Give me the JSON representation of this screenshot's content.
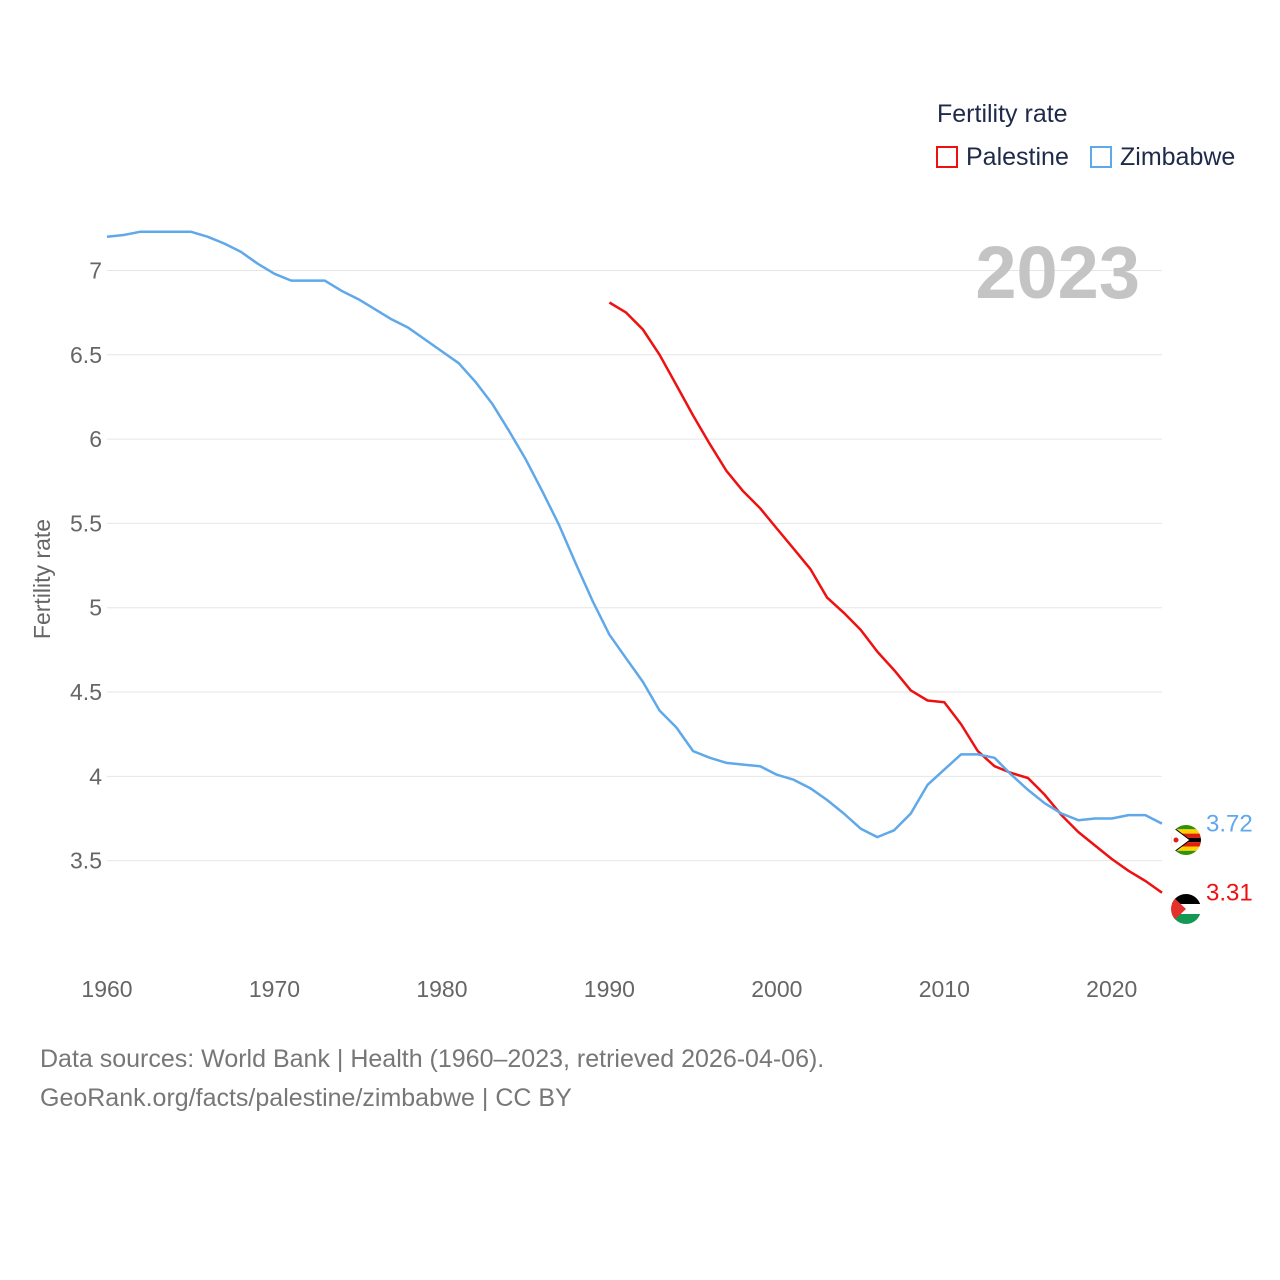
{
  "legend": {
    "title": "Fertility rate",
    "items": [
      {
        "label": "Palestine",
        "color": "#ee1111"
      },
      {
        "label": "Zimbabwe",
        "color": "#5fa8ea"
      }
    ]
  },
  "chart_data": {
    "type": "line",
    "year_label": "2023",
    "ylabel": "Fertility rate",
    "xlabel": "",
    "xlim": [
      1960,
      2023
    ],
    "ylim": [
      3,
      7.4
    ],
    "xticks": [
      1960,
      1970,
      1980,
      1990,
      2000,
      2010,
      2020
    ],
    "yticks": [
      3.5,
      4,
      4.5,
      5,
      5.5,
      6,
      6.5,
      7
    ],
    "series": [
      {
        "name": "Palestine",
        "color": "#ee1111",
        "end_label": "3.31",
        "x": [
          1990,
          1991,
          1992,
          1993,
          1994,
          1995,
          1996,
          1997,
          1998,
          1999,
          2000,
          2001,
          2002,
          2003,
          2004,
          2005,
          2006,
          2007,
          2008,
          2009,
          2010,
          2011,
          2012,
          2013,
          2014,
          2015,
          2016,
          2017,
          2018,
          2019,
          2020,
          2021,
          2022,
          2023
        ],
        "y": [
          6.81,
          6.75,
          6.65,
          6.5,
          6.32,
          6.14,
          5.97,
          5.81,
          5.69,
          5.59,
          5.47,
          5.35,
          5.23,
          5.06,
          4.97,
          4.87,
          4.74,
          4.63,
          4.51,
          4.45,
          4.44,
          4.31,
          4.15,
          4.06,
          4.02,
          3.99,
          3.89,
          3.77,
          3.67,
          3.59,
          3.51,
          3.44,
          3.38,
          3.31
        ]
      },
      {
        "name": "Zimbabwe",
        "color": "#5fa8ea",
        "end_label": "3.72",
        "x": [
          1960,
          1961,
          1962,
          1963,
          1964,
          1965,
          1966,
          1967,
          1968,
          1969,
          1970,
          1971,
          1972,
          1973,
          1974,
          1975,
          1976,
          1977,
          1978,
          1979,
          1980,
          1981,
          1982,
          1983,
          1984,
          1985,
          1986,
          1987,
          1988,
          1989,
          1990,
          1991,
          1992,
          1993,
          1994,
          1995,
          1996,
          1997,
          1998,
          1999,
          2000,
          2001,
          2002,
          2003,
          2004,
          2005,
          2006,
          2007,
          2008,
          2009,
          2010,
          2011,
          2012,
          2013,
          2014,
          2015,
          2016,
          2017,
          2018,
          2019,
          2020,
          2021,
          2022,
          2023
        ],
        "y": [
          7.2,
          7.21,
          7.23,
          7.23,
          7.23,
          7.23,
          7.2,
          7.16,
          7.11,
          7.04,
          6.98,
          6.94,
          6.94,
          6.94,
          6.88,
          6.83,
          6.77,
          6.71,
          6.66,
          6.59,
          6.52,
          6.45,
          6.34,
          6.21,
          6.05,
          5.88,
          5.69,
          5.49,
          5.26,
          5.04,
          4.84,
          4.7,
          4.56,
          4.39,
          4.29,
          4.15,
          4.11,
          4.08,
          4.07,
          4.06,
          4.01,
          3.98,
          3.93,
          3.86,
          3.78,
          3.69,
          3.64,
          3.68,
          3.78,
          3.95,
          4.04,
          4.13,
          4.13,
          4.11,
          4.01,
          3.92,
          3.84,
          3.78,
          3.74,
          3.75,
          3.75,
          3.77,
          3.77,
          3.72
        ]
      }
    ]
  },
  "footer": {
    "line1": "Data sources: World Bank | Health (1960–2023, retrieved 2026-04-06).",
    "line2": "GeoRank.org/facts/palestine/zimbabwe | CC BY"
  }
}
